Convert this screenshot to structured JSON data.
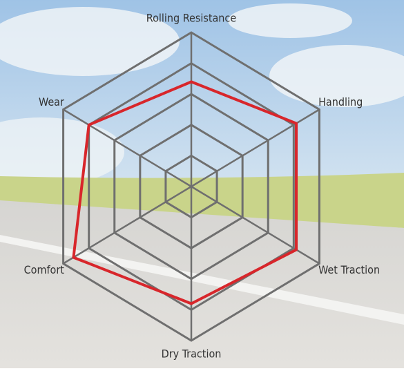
{
  "chart_data": {
    "type": "radar",
    "categories": [
      "Rolling Resistance",
      "Handling",
      "Wet Traction",
      "Dry Traction",
      "Comfort",
      "Wear"
    ],
    "values": [
      3.4,
      4.1,
      4.1,
      3.8,
      4.6,
      4.0
    ],
    "color": "#d8262b",
    "ylim": [
      0,
      5
    ],
    "yticks": [
      1,
      2,
      3,
      4,
      5
    ],
    "grid": true
  }
}
